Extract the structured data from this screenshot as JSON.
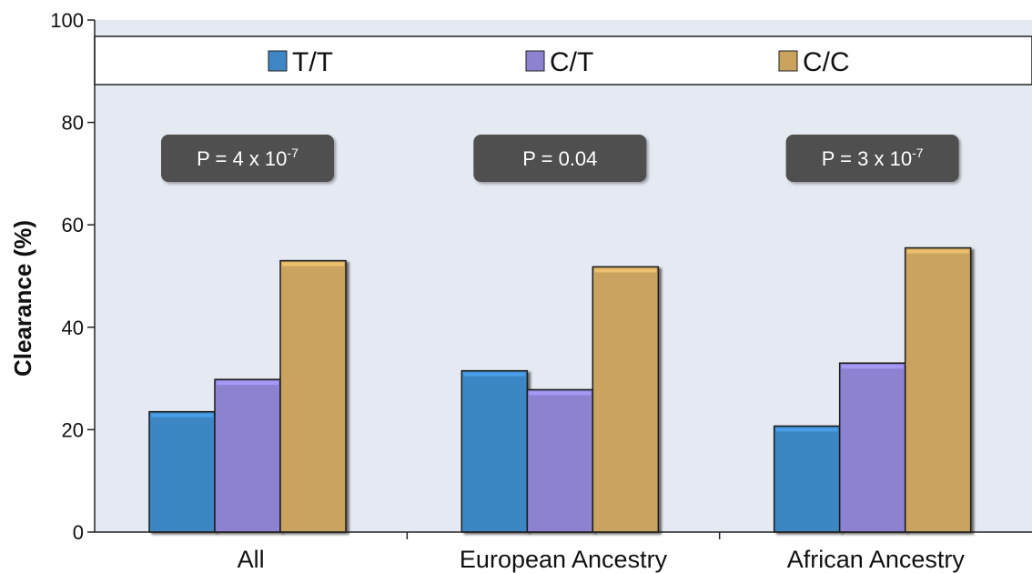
{
  "chart_data": {
    "type": "bar",
    "categories": [
      "All",
      "European Ancestry",
      "African Ancestry"
    ],
    "series": [
      {
        "name": "T/T",
        "color": "#3e86c4",
        "values": [
          23.5,
          31.5,
          20.7
        ]
      },
      {
        "name": "C/T",
        "color": "#8b82d0",
        "values": [
          29.8,
          27.8,
          33.0
        ]
      },
      {
        "name": "C/C",
        "color": "#c9a35e",
        "values": [
          53.0,
          51.8,
          55.5
        ]
      }
    ],
    "ylabel": "Clearance (%)",
    "ylim": [
      0,
      100
    ],
    "yticks": [
      0,
      20,
      40,
      60,
      80,
      100
    ],
    "grid": false,
    "legend": {
      "placement": "top"
    },
    "annotations": [
      {
        "base": "P = 4 x 10",
        "exponent": "-7"
      },
      {
        "base": "P = 0.04",
        "exponent": ""
      },
      {
        "base": "P = 3 x 10",
        "exponent": "-7"
      }
    ],
    "colors": {
      "plot_background": "#e5e9f1",
      "legend_background": "#ffffff",
      "annotation_box": "#505050"
    }
  }
}
